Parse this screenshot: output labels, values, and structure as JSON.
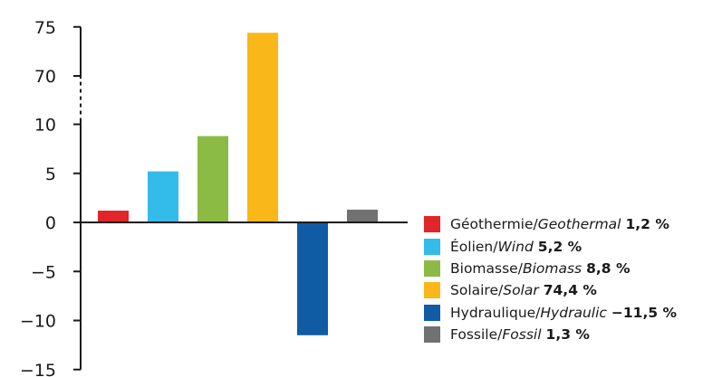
{
  "chart_data": {
    "type": "bar",
    "title": "",
    "xlabel": "",
    "ylabel": "",
    "axis_break": {
      "from": 10,
      "to": 70
    },
    "y_ticks": [
      {
        "value": 75,
        "label": "75"
      },
      {
        "value": 70,
        "label": "70"
      },
      {
        "value": 10,
        "label": "10"
      },
      {
        "value": 5,
        "label": "5"
      },
      {
        "value": 0,
        "label": "0"
      },
      {
        "value": -5,
        "label": "−5"
      },
      {
        "value": -10,
        "label": "−10"
      },
      {
        "value": -15,
        "label": "−15"
      }
    ],
    "ylim": [
      -15,
      75
    ],
    "grid": false,
    "legend_position": "bottom-right",
    "series": [
      {
        "label_fr": "Géothermie/",
        "label_en": "Geothermal",
        "value_label": "1,2 %",
        "value": 1.2,
        "color": "#e2242b"
      },
      {
        "label_fr": "Éolien/",
        "label_en": "Wind",
        "value_label": "5,2 %",
        "value": 5.2,
        "color": "#33bbea"
      },
      {
        "label_fr": "Biomasse/",
        "label_en": "Biomass",
        "value_label": "8,8 %",
        "value": 8.8,
        "color": "#8bbb44"
      },
      {
        "label_fr": "Solaire/",
        "label_en": "Solar",
        "value_label": "74,4 %",
        "value": 74.4,
        "color": "#f9b71a"
      },
      {
        "label_fr": "Hydraulique/",
        "label_en": "Hydraulic",
        "value_label": "−11,5 %",
        "value": -11.5,
        "color": "#0f5ca5"
      },
      {
        "label_fr": "Fossile/",
        "label_en": "Fossil",
        "value_label": "1,3 %",
        "value": 1.3,
        "color": "#717171"
      }
    ]
  }
}
